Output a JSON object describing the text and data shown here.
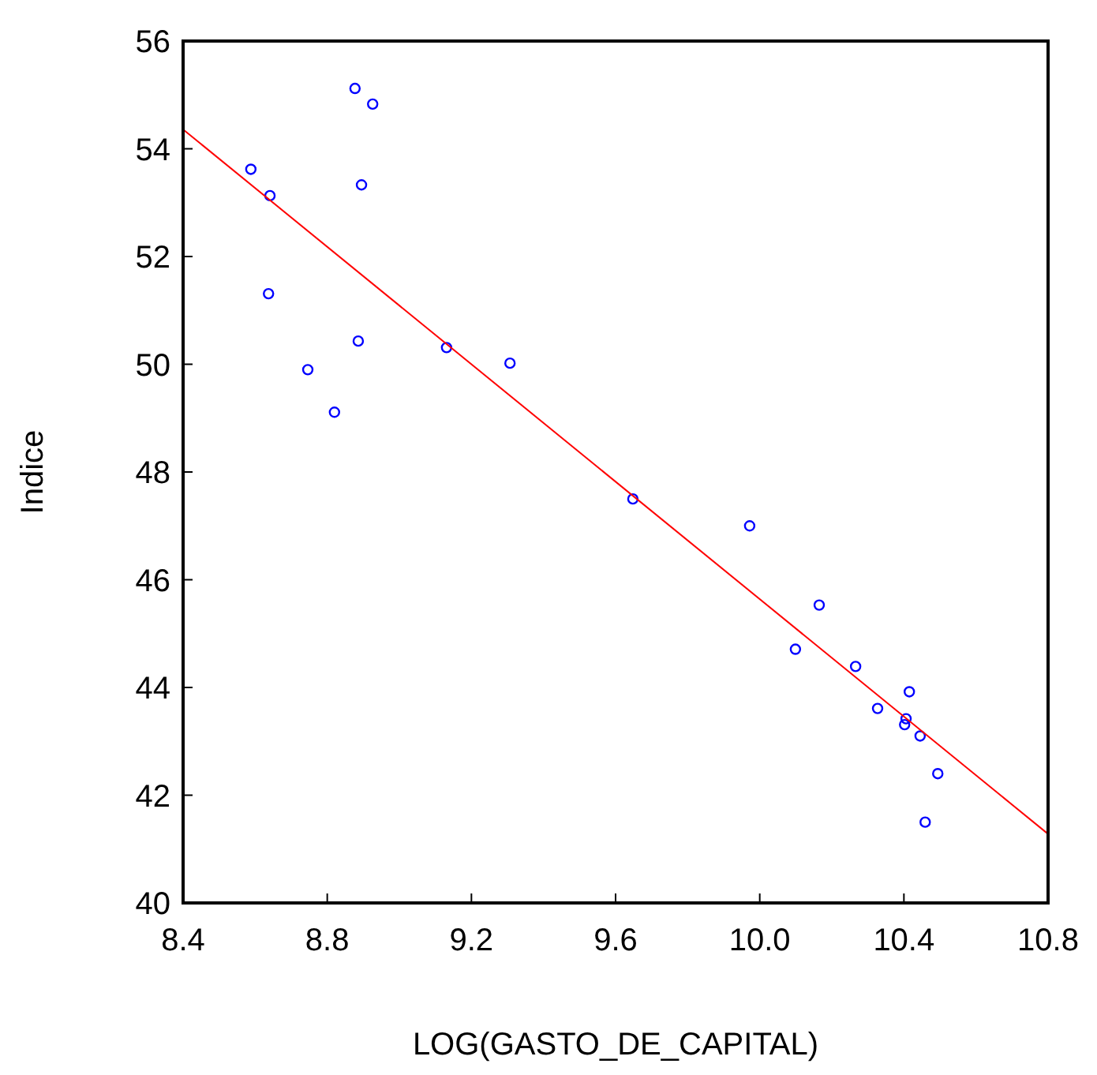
{
  "chart_data": {
    "type": "scatter",
    "xlabel": "LOG(GASTO_DE_CAPITAL)",
    "ylabel": "Indice",
    "xlim": [
      8.4,
      10.8
    ],
    "xticks": [
      {
        "value": 8.4,
        "label": "8.4"
      },
      {
        "value": 8.8,
        "label": "8.8"
      },
      {
        "value": 9.2,
        "label": "9.2"
      },
      {
        "value": 9.6,
        "label": "9.6"
      },
      {
        "value": 10.0,
        "label": "10.0"
      },
      {
        "value": 10.4,
        "label": "10.4"
      },
      {
        "value": 10.8,
        "label": "10.8"
      }
    ],
    "ylim": [
      40,
      56
    ],
    "yticks": [
      40,
      42,
      44,
      46,
      48,
      50,
      52,
      54,
      56
    ],
    "grid": false,
    "series": [
      {
        "color": "#0000ff",
        "marker": "circle",
        "x": [
          8.588,
          8.641,
          8.637,
          8.746,
          8.82,
          8.877,
          8.926,
          8.895,
          8.886,
          9.131,
          9.307,
          9.648,
          9.972,
          10.099,
          10.165,
          10.266,
          10.327,
          10.415,
          10.406,
          10.402,
          10.445,
          10.494,
          10.459
        ],
        "values": [
          53.62,
          53.13,
          51.31,
          49.9,
          49.11,
          55.12,
          54.83,
          53.33,
          50.43,
          50.31,
          50.02,
          47.5,
          47.0,
          44.71,
          45.53,
          44.39,
          43.61,
          43.92,
          43.42,
          43.31,
          43.1,
          42.4,
          41.5
        ]
      },
      {
        "type": "line",
        "color": "#ff0000",
        "line_style": "solid",
        "x": [
          8.4,
          10.8
        ],
        "values": [
          54.36,
          41.28
        ]
      }
    ]
  }
}
